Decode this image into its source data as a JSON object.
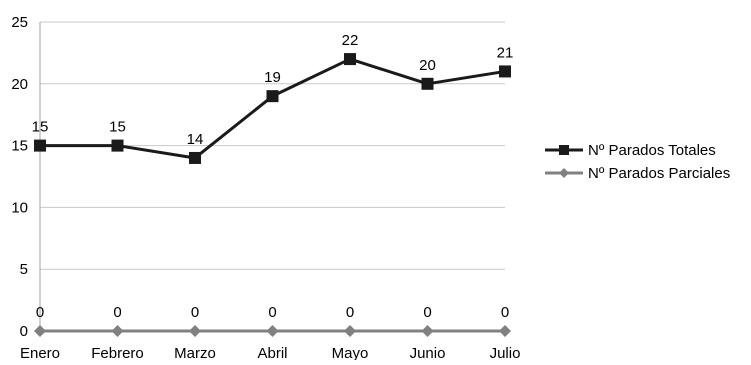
{
  "chart_data": {
    "type": "line",
    "title": "",
    "xlabel": "",
    "ylabel": "",
    "categories": [
      "Enero",
      "Febrero",
      "Marzo",
      "Abril",
      "Mayo",
      "Junio",
      "Julio"
    ],
    "ylim": [
      0,
      25
    ],
    "yticks": [
      0,
      5,
      10,
      15,
      20,
      25
    ],
    "grid": "horizontal",
    "legend_position": "right",
    "series": [
      {
        "name": "Nº Parados Totales",
        "values": [
          15,
          15,
          14,
          19,
          22,
          20,
          21
        ],
        "color": "#1a1a1a",
        "marker": "square",
        "data_labels": [
          "15",
          "15",
          "14",
          "19",
          "22",
          "20",
          "21"
        ]
      },
      {
        "name": "Nº Parados Parciales",
        "values": [
          0,
          0,
          0,
          0,
          0,
          0,
          0
        ],
        "color": "#808080",
        "marker": "diamond",
        "data_labels": [
          "0",
          "0",
          "0",
          "0",
          "0",
          "0",
          "0"
        ]
      }
    ]
  }
}
